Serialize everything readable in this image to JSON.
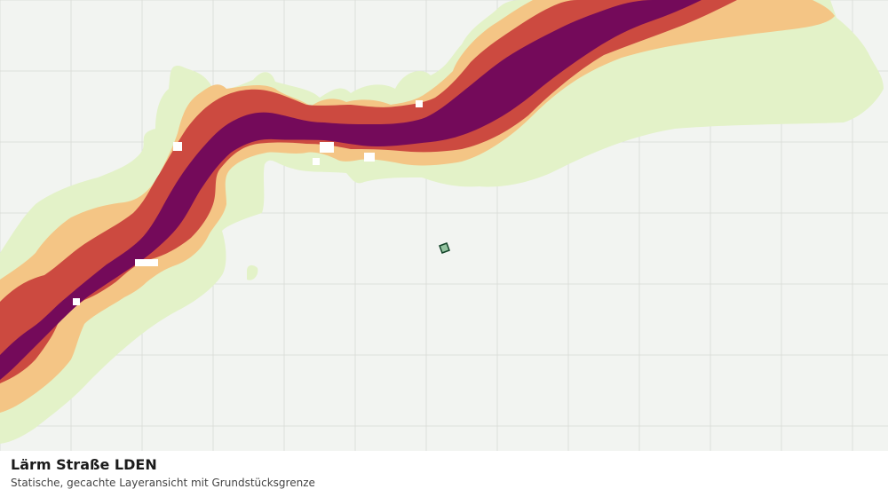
{
  "caption": {
    "title": "Lärm Straße LDEN",
    "subtitle": "Statische, gecachte Layeransicht mit Grundstücksgrenze"
  },
  "map": {
    "background_color": "#f2f4f1",
    "grid_color": "#dcdfdb",
    "noise_bands": [
      {
        "name": "band-outer",
        "color": "#e3f2c8"
      },
      {
        "name": "band-low",
        "color": "#f4c585"
      },
      {
        "name": "band-mid",
        "color": "#cc4a40"
      },
      {
        "name": "band-high",
        "color": "#740a5a"
      }
    ],
    "parcel": {
      "fill": "#93c39f",
      "stroke": "#14452a"
    }
  }
}
